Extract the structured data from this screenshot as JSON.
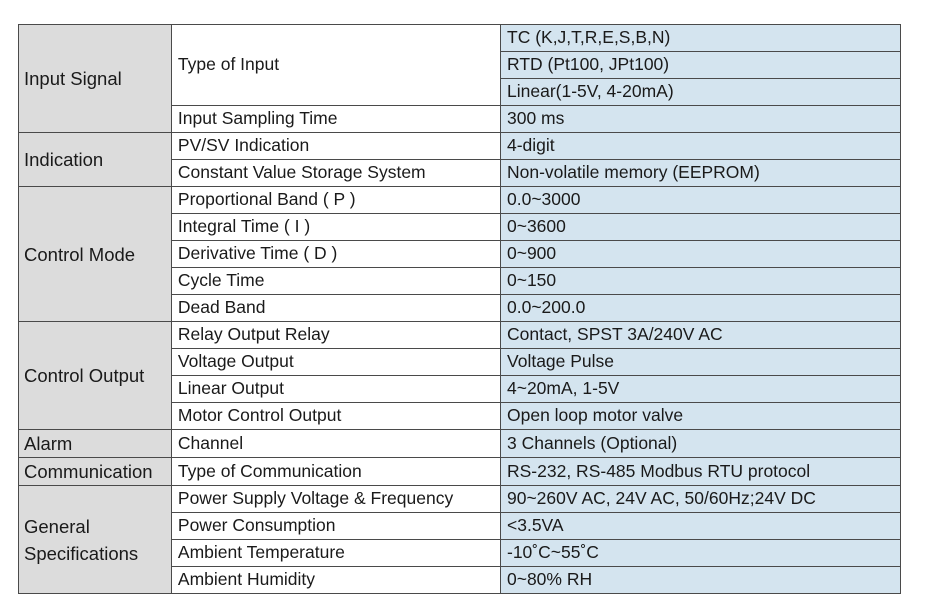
{
  "table": {
    "groups": [
      {
        "category": "Input Signal",
        "rows": [
          {
            "item": "Type of Input",
            "values": [
              "TC (K,J,T,R,E,S,B,N)",
              "RTD (Pt100, JPt100)",
              "Linear(1-5V, 4-20mA)"
            ]
          },
          {
            "item": "Input Sampling Time",
            "values": [
              "300 ms"
            ]
          }
        ]
      },
      {
        "category": "Indication",
        "rows": [
          {
            "item": "PV/SV Indication",
            "values": [
              "4-digit"
            ]
          },
          {
            "item": "Constant Value Storage System",
            "values": [
              "Non-volatile memory (EEPROM)"
            ]
          }
        ]
      },
      {
        "category": "Control Mode",
        "rows": [
          {
            "item": "Proportional Band ( P )",
            "values": [
              "0.0~3000"
            ]
          },
          {
            "item": "Integral Time ( I )",
            "values": [
              "0~3600"
            ]
          },
          {
            "item": "Derivative Time ( D )",
            "values": [
              "0~900"
            ]
          },
          {
            "item": "Cycle Time",
            "values": [
              "0~150"
            ]
          },
          {
            "item": "Dead Band",
            "values": [
              "0.0~200.0"
            ]
          }
        ]
      },
      {
        "category": "Control Output",
        "rows": [
          {
            "item": "Relay Output Relay",
            "values": [
              "Contact, SPST 3A/240V AC"
            ]
          },
          {
            "item": "Voltage Output",
            "values": [
              "Voltage Pulse"
            ]
          },
          {
            "item": "Linear Output",
            "values": [
              "4~20mA, 1-5V"
            ]
          },
          {
            "item": "Motor Control Output",
            "values": [
              "Open loop motor valve"
            ]
          }
        ]
      },
      {
        "category": "Alarm",
        "rows": [
          {
            "item": "Channel",
            "values": [
              "3 Channels (Optional)"
            ]
          }
        ]
      },
      {
        "category": "Communication",
        "rows": [
          {
            "item": "Type of Communication",
            "values": [
              "RS-232, RS-485 Modbus RTU protocol"
            ]
          }
        ]
      },
      {
        "category": "General Specifications",
        "rows": [
          {
            "item": "Power Supply Voltage & Frequency",
            "values": [
              "90~260V AC, 24V AC, 50/60Hz;24V DC"
            ]
          },
          {
            "item": "Power Consumption",
            "values": [
              "<3.5VA"
            ]
          },
          {
            "item": "Ambient Temperature",
            "values": [
              "-10˚C~55˚C"
            ]
          },
          {
            "item": "Ambient Humidity",
            "values": [
              "0~80% RH"
            ]
          }
        ]
      }
    ]
  }
}
